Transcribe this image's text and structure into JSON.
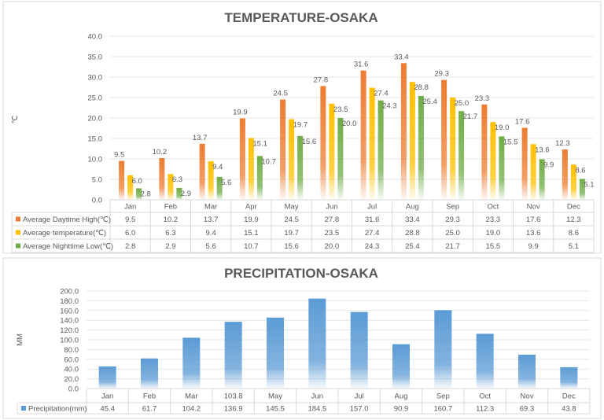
{
  "chart_data": [
    {
      "type": "bar",
      "title": "TEMPERATURE-OSAKA",
      "ylabel": "℃",
      "ylim": [
        0,
        40
      ],
      "ytick_step": 5,
      "yticks": [
        "0.0",
        "5.0",
        "10.0",
        "15.0",
        "20.0",
        "25.0",
        "30.0",
        "35.0",
        "40.0"
      ],
      "grid": true,
      "legend": "data-table",
      "categories": [
        "Jan",
        "Feb",
        "Mar",
        "Apr",
        "May",
        "Jun",
        "Jul",
        "Aug",
        "Sep",
        "Oct",
        "Nov",
        "Dec"
      ],
      "series": [
        {
          "name": "Average Daytime High(℃)",
          "color": "#ed7d31",
          "values": [
            9.5,
            10.2,
            13.7,
            19.9,
            24.5,
            27.8,
            31.6,
            33.4,
            29.3,
            23.3,
            17.6,
            12.3
          ]
        },
        {
          "name": "Average temperature(℃)",
          "color": "#ffc000",
          "values": [
            6.0,
            6.3,
            9.4,
            15.1,
            19.7,
            23.5,
            27.4,
            28.8,
            25.0,
            19.0,
            13.6,
            8.6
          ]
        },
        {
          "name": "Average Nighttime Low(℃)",
          "color": "#70ad47",
          "values": [
            2.8,
            2.9,
            5.6,
            10.7,
            15.6,
            20.0,
            24.3,
            25.4,
            21.7,
            15.5,
            9.9,
            5.1
          ]
        }
      ]
    },
    {
      "type": "bar",
      "title": "PRECIPITATION-OSAKA",
      "ylabel": "MM",
      "ylim": [
        0,
        200
      ],
      "ytick_step": 20,
      "yticks": [
        "0.0",
        "20.0",
        "40.0",
        "60.0",
        "80.0",
        "100.0",
        "120.0",
        "140.0",
        "160.0",
        "180.0",
        "200.0"
      ],
      "grid": true,
      "legend": "data-table",
      "categories": [
        "Jan",
        "Feb",
        "Mar",
        "103.8",
        "May",
        "Jun",
        "Jul",
        "Aug",
        "Sep",
        "Oct",
        "Nov",
        "Dec"
      ],
      "series": [
        {
          "name": "Precipitation(mm)",
          "color": "#5b9bd5",
          "values": [
            45.4,
            61.7,
            104.2,
            136.9,
            145.5,
            184.5,
            157.0,
            90.9,
            160.7,
            112.3,
            69.3,
            43.8
          ]
        }
      ]
    }
  ]
}
